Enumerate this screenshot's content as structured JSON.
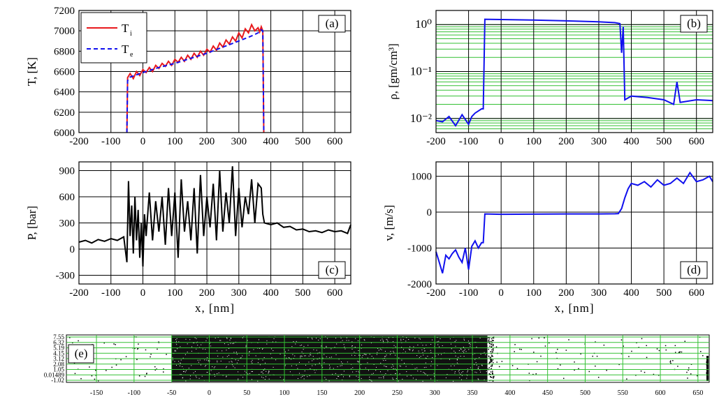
{
  "colors": {
    "red": "#e8191c",
    "blue": "#1010ee",
    "black": "#000000",
    "green": "#33c033",
    "grid": "#000000"
  },
  "chart_data": [
    {
      "panel": "(a)",
      "type": "line",
      "xlabel": "",
      "ylabel": "T, [K]",
      "xlim": [
        -200,
        650
      ],
      "ylim": [
        6000,
        7200
      ],
      "xticks": [
        -200,
        -100,
        0,
        100,
        200,
        300,
        400,
        500,
        600
      ],
      "yticks": [
        6000,
        6200,
        6400,
        6600,
        6800,
        7000,
        7200
      ],
      "grid": true,
      "legend": "top-left",
      "series": [
        {
          "name": "T",
          "subscript": "i",
          "color": "#e8191c",
          "style": "solid",
          "x": [
            -50,
            -48,
            -40,
            -30,
            -20,
            -10,
            0,
            10,
            20,
            30,
            40,
            50,
            60,
            70,
            80,
            90,
            100,
            110,
            120,
            130,
            140,
            150,
            160,
            170,
            180,
            190,
            200,
            210,
            220,
            230,
            240,
            250,
            260,
            270,
            280,
            290,
            300,
            310,
            320,
            330,
            340,
            350,
            360,
            365,
            370,
            375,
            378
          ],
          "y": [
            6000,
            6540,
            6580,
            6530,
            6600,
            6560,
            6620,
            6590,
            6640,
            6600,
            6660,
            6630,
            6680,
            6650,
            6700,
            6660,
            6720,
            6690,
            6740,
            6700,
            6760,
            6720,
            6780,
            6740,
            6800,
            6760,
            6820,
            6790,
            6850,
            6810,
            6880,
            6840,
            6910,
            6870,
            6940,
            6900,
            6980,
            6930,
            7020,
            6980,
            7060,
            7000,
            7030,
            6990,
            7040,
            7000,
            6000
          ]
        },
        {
          "name": "T",
          "subscript": "e",
          "color": "#1010ee",
          "style": "dashed",
          "x": [
            -50,
            -48,
            -40,
            0,
            50,
            100,
            150,
            200,
            250,
            300,
            340,
            360,
            370,
            375,
            378
          ],
          "y": [
            6000,
            6510,
            6545,
            6590,
            6640,
            6680,
            6730,
            6780,
            6840,
            6900,
            6950,
            6980,
            7010,
            7000,
            6000
          ]
        }
      ]
    },
    {
      "panel": "(b)",
      "type": "line",
      "xlabel": "",
      "ylabel": "ρ, [gm/cm³]",
      "yscale": "log",
      "xlim": [
        -200,
        650
      ],
      "ylim": [
        0.005,
        2
      ],
      "xticks": [
        -200,
        -100,
        0,
        100,
        200,
        300,
        400,
        500,
        600
      ],
      "yticks": [
        0.01,
        0.1,
        1
      ],
      "ytick_labels": [
        "10⁻²",
        "10⁻¹",
        "10⁰"
      ],
      "grid": true,
      "series": [
        {
          "color": "#1010ee",
          "x": [
            -200,
            -180,
            -160,
            -140,
            -120,
            -100,
            -90,
            -80,
            -60,
            -55,
            -50,
            0,
            100,
            200,
            300,
            350,
            365,
            370,
            375,
            380,
            400,
            450,
            500,
            530,
            540,
            550,
            600,
            650
          ],
          "y": [
            0.009,
            0.0085,
            0.011,
            0.007,
            0.012,
            0.0075,
            0.011,
            0.013,
            0.016,
            0.016,
            1.3,
            1.28,
            1.25,
            1.2,
            1.15,
            1.1,
            1.05,
            0.25,
            0.9,
            0.025,
            0.03,
            0.028,
            0.025,
            0.02,
            0.06,
            0.022,
            0.025,
            0.024
          ]
        }
      ]
    },
    {
      "panel": "(c)",
      "type": "line",
      "xlabel": "x, [nm]",
      "ylabel": "P, [bar]",
      "xlim": [
        -200,
        650
      ],
      "ylim": [
        -400,
        1000
      ],
      "xticks": [
        -200,
        -100,
        0,
        100,
        200,
        300,
        400,
        500,
        600
      ],
      "yticks": [
        -300,
        0,
        300,
        600,
        900
      ],
      "grid": true,
      "series": [
        {
          "color": "#000000",
          "x": [
            -200,
            -180,
            -160,
            -140,
            -120,
            -100,
            -80,
            -60,
            -50,
            -45,
            -40,
            -35,
            -30,
            -25,
            -20,
            -15,
            -10,
            -5,
            0,
            5,
            10,
            20,
            30,
            40,
            50,
            60,
            70,
            80,
            90,
            100,
            110,
            120,
            130,
            140,
            150,
            160,
            170,
            180,
            190,
            200,
            210,
            220,
            230,
            240,
            250,
            260,
            270,
            280,
            290,
            300,
            310,
            320,
            330,
            340,
            350,
            360,
            370,
            375,
            380,
            400,
            420,
            440,
            460,
            480,
            500,
            520,
            540,
            560,
            580,
            600,
            620,
            640,
            650
          ],
          "y": [
            80,
            100,
            70,
            110,
            90,
            120,
            100,
            140,
            -150,
            780,
            150,
            500,
            -50,
            600,
            100,
            450,
            -100,
            300,
            -200,
            400,
            150,
            650,
            100,
            550,
            200,
            600,
            50,
            700,
            150,
            650,
            -100,
            800,
            200,
            550,
            100,
            700,
            -50,
            850,
            150,
            600,
            250,
            750,
            100,
            900,
            200,
            650,
            300,
            950,
            150,
            700,
            250,
            600,
            400,
            800,
            300,
            750,
            700,
            400,
            300,
            280,
            300,
            250,
            260,
            220,
            230,
            200,
            210,
            190,
            220,
            200,
            210,
            180,
            280
          ]
        }
      ]
    },
    {
      "panel": "(d)",
      "type": "line",
      "xlabel": "x, [nm]",
      "ylabel": "v, [m/s]",
      "xlim": [
        -200,
        650
      ],
      "ylim": [
        -2000,
        1400
      ],
      "xticks": [
        -200,
        -100,
        0,
        100,
        200,
        300,
        400,
        500,
        600
      ],
      "yticks": [
        -2000,
        -1000,
        0,
        1000
      ],
      "grid": true,
      "series": [
        {
          "color": "#1010ee",
          "x": [
            -200,
            -190,
            -180,
            -170,
            -160,
            -150,
            -140,
            -130,
            -120,
            -110,
            -100,
            -90,
            -80,
            -70,
            -60,
            -55,
            -50,
            0,
            100,
            200,
            300,
            350,
            360,
            370,
            380,
            390,
            400,
            420,
            440,
            460,
            480,
            500,
            520,
            540,
            560,
            580,
            600,
            620,
            640,
            650
          ],
          "y": [
            -1100,
            -1400,
            -1700,
            -1200,
            -1300,
            -1150,
            -1050,
            -1250,
            -1400,
            -1000,
            -1600,
            -950,
            -800,
            -1000,
            -850,
            -850,
            -50,
            -60,
            -55,
            -50,
            -50,
            -45,
            -40,
            100,
            400,
            650,
            800,
            750,
            850,
            700,
            900,
            750,
            800,
            950,
            800,
            1100,
            850,
            900,
            1000,
            850
          ]
        }
      ]
    },
    {
      "panel": "(e)",
      "type": "scatter",
      "xlim": [
        -190,
        665
      ],
      "xticks": [
        -150,
        -100,
        -50,
        0,
        50,
        100,
        150,
        200,
        250,
        300,
        350,
        400,
        450,
        500,
        550,
        600,
        650
      ],
      "ytick_labels": [
        "7.55",
        "6.32",
        "5.19",
        "4.15",
        "3.12",
        "2.08",
        "1.05",
        "0.01489",
        "-1.02"
      ],
      "dense_region": [
        -50,
        370
      ],
      "grid": true
    }
  ]
}
